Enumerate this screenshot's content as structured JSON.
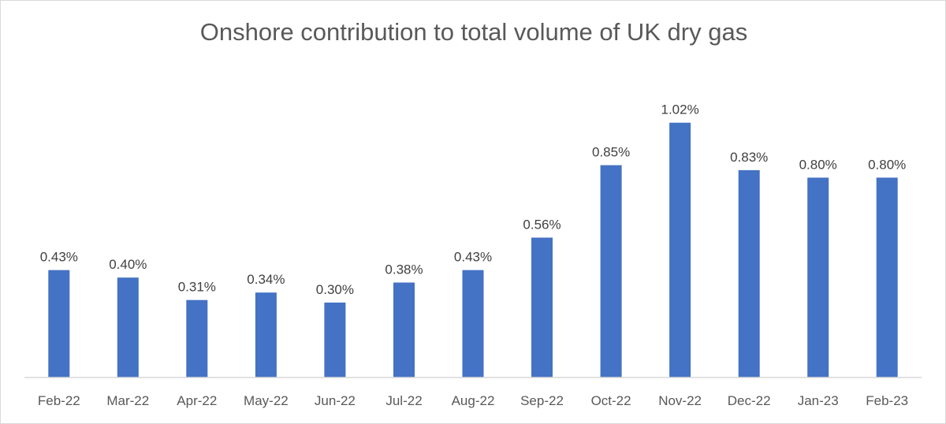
{
  "chart_data": {
    "type": "bar",
    "title": "Onshore contribution to total volume of UK dry gas",
    "xlabel": "",
    "ylabel": "",
    "categories": [
      "Feb-22",
      "Mar-22",
      "Apr-22",
      "May-22",
      "Jun-22",
      "Jul-22",
      "Aug-22",
      "Sep-22",
      "Oct-22",
      "Nov-22",
      "Dec-22",
      "Jan-23",
      "Feb-23"
    ],
    "values": [
      0.43,
      0.4,
      0.31,
      0.34,
      0.3,
      0.38,
      0.43,
      0.56,
      0.85,
      1.02,
      0.83,
      0.8,
      0.8
    ],
    "data_labels": [
      "0.43%",
      "0.40%",
      "0.31%",
      "0.34%",
      "0.30%",
      "0.38%",
      "0.43%",
      "0.56%",
      "0.85%",
      "1.02%",
      "0.83%",
      "0.80%",
      "0.80%"
    ],
    "ylim": [
      0,
      1.1
    ],
    "grid": false,
    "legend": "none",
    "bar_color": "#4472c4",
    "axis_color": "#d9d9d9"
  }
}
